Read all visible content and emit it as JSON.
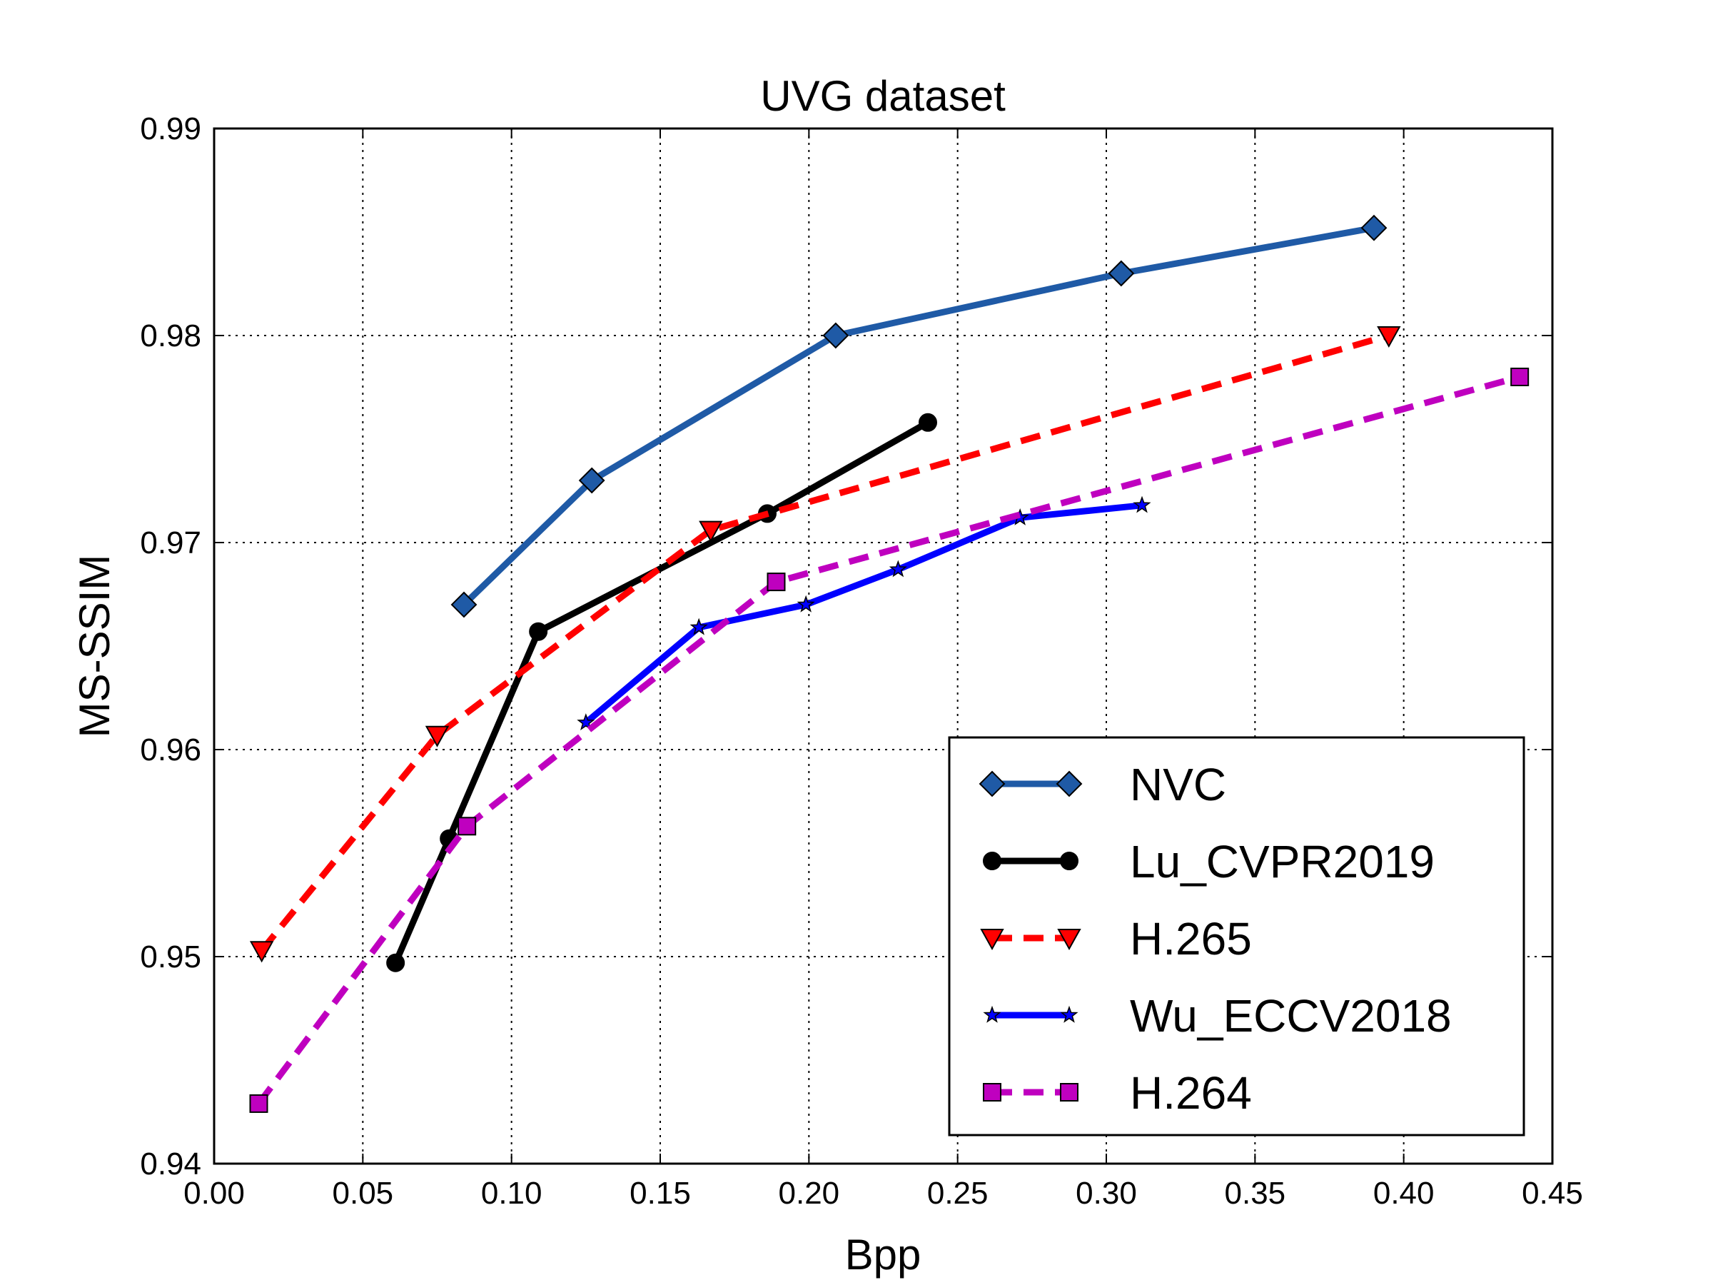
{
  "chart_data": {
    "type": "line",
    "title": "UVG dataset",
    "xlabel": "Bpp",
    "ylabel": "MS-SSIM",
    "xlim": [
      0.0,
      0.45
    ],
    "ylim": [
      0.94,
      0.99
    ],
    "xticks": [
      0.0,
      0.05,
      0.1,
      0.15,
      0.2,
      0.25,
      0.3,
      0.35,
      0.4,
      0.45
    ],
    "xtick_labels": [
      "0.00",
      "0.05",
      "0.10",
      "0.15",
      "0.20",
      "0.25",
      "0.30",
      "0.35",
      "0.40",
      "0.45"
    ],
    "yticks": [
      0.94,
      0.95,
      0.96,
      0.97,
      0.98,
      0.99
    ],
    "ytick_labels": [
      "0.94",
      "0.95",
      "0.96",
      "0.97",
      "0.98",
      "0.99"
    ],
    "grid": true,
    "legend_position": "bottom-right",
    "series": [
      {
        "name": "NVC",
        "color": "#1f5aa6",
        "dash": "solid",
        "marker": "diamond",
        "x": [
          0.084,
          0.127,
          0.209,
          0.305,
          0.39
        ],
        "y": [
          0.967,
          0.973,
          0.98,
          0.983,
          0.9852
        ]
      },
      {
        "name": "Lu_CVPR2019",
        "color": "#000000",
        "dash": "solid",
        "marker": "circle",
        "x": [
          0.061,
          0.079,
          0.109,
          0.186,
          0.24
        ],
        "y": [
          0.9497,
          0.9557,
          0.9657,
          0.9714,
          0.9758
        ]
      },
      {
        "name": "H.265",
        "color": "#ff0000",
        "dash": "dashed",
        "marker": "triangle-down",
        "x": [
          0.016,
          0.075,
          0.167,
          0.395
        ],
        "y": [
          0.9503,
          0.9607,
          0.9706,
          0.98
        ]
      },
      {
        "name": "Wu_ECCV2018",
        "color": "#0000ff",
        "dash": "solid",
        "marker": "star",
        "x": [
          0.125,
          0.163,
          0.199,
          0.23,
          0.271,
          0.312
        ],
        "y": [
          0.9613,
          0.9659,
          0.967,
          0.9687,
          0.9712,
          0.9718
        ]
      },
      {
        "name": "H.264",
        "color": "#bf00bf",
        "dash": "dashed",
        "marker": "square",
        "x": [
          0.015,
          0.085,
          0.189,
          0.439
        ],
        "y": [
          0.9429,
          0.9563,
          0.9681,
          0.978
        ]
      }
    ]
  }
}
